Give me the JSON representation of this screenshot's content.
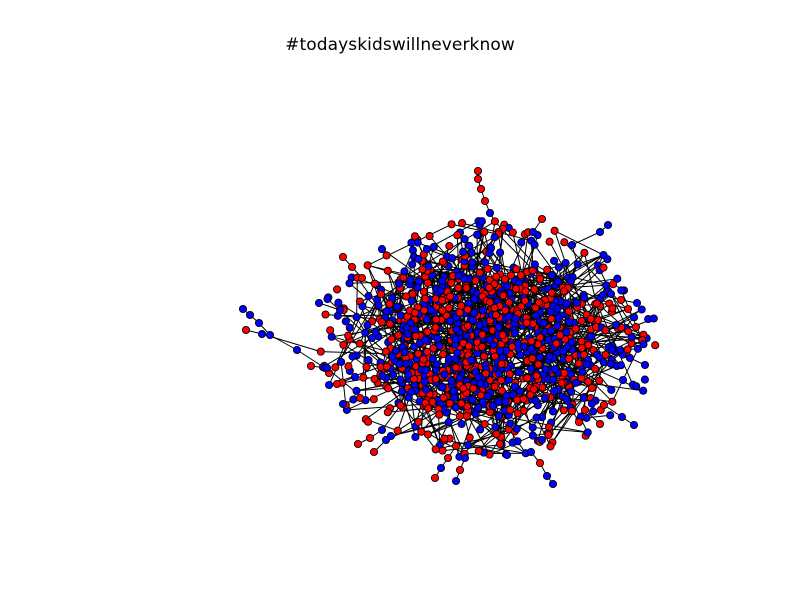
{
  "title": "#todayskidswillneverknow",
  "graph": {
    "type": "network",
    "node_colors": {
      "group_a": "#ff0000",
      "group_b": "#0000ff"
    },
    "node_edge_color": "#000000",
    "edge_color": "#000000",
    "background": "#ffffff"
  }
}
